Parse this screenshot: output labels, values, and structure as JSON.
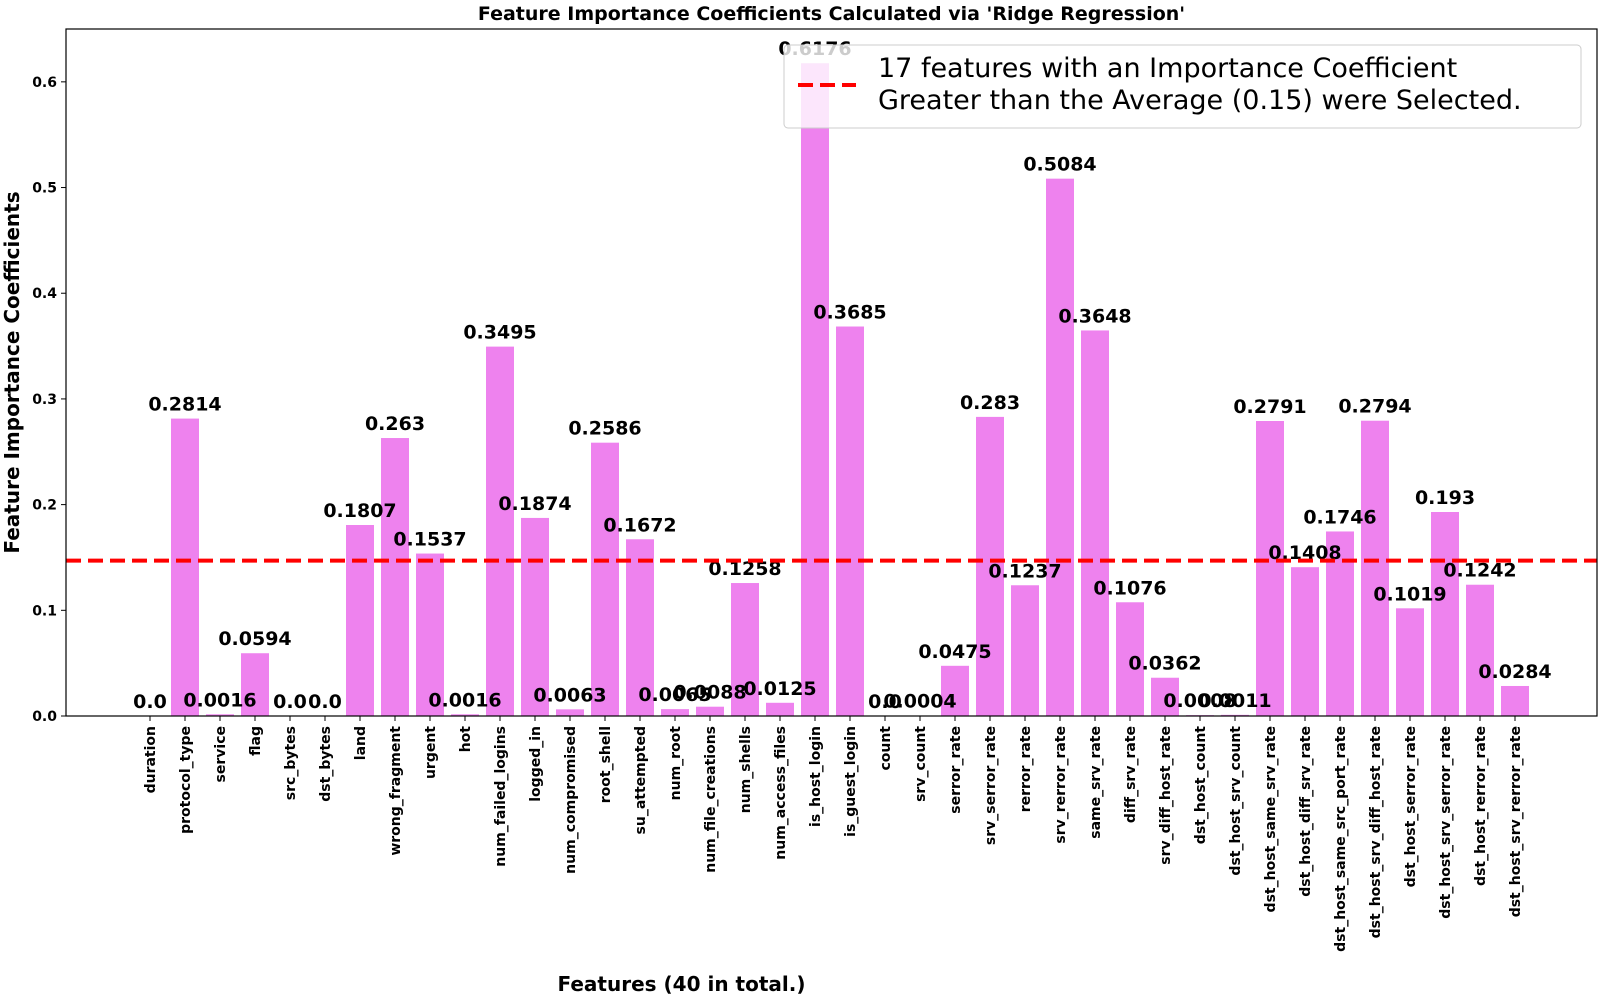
{
  "chart_data": {
    "type": "bar",
    "title": "Feature Importance Coefficients Calculated via 'Ridge Regression'",
    "xlabel": "Features (40 in total.)",
    "ylabel": "Feature Importance Coefficients",
    "ylim": [
      0,
      0.65
    ],
    "yticks": [
      0.0,
      0.1,
      0.2,
      0.3,
      0.4,
      0.5,
      0.6
    ],
    "ytick_labels": [
      "0.0",
      "0.1",
      "0.2",
      "0.3",
      "0.4",
      "0.5",
      "0.6"
    ],
    "grid": false,
    "legend_position": "top-right",
    "bar_color": "#ee82ee",
    "threshold": {
      "value": 0.147,
      "color": "#ff0000",
      "style": "dashed",
      "legend_line1": "17 features with an Importance Coefficient",
      "legend_line2": "Greater than the Average (0.15) were Selected."
    },
    "categories": [
      "duration",
      "protocol_type",
      "service",
      "flag",
      "src_bytes",
      "dst_bytes",
      "land",
      "wrong_fragment",
      "urgent",
      "hot",
      "num_failed_logins",
      "logged_in",
      "num_compromised",
      "root_shell",
      "su_attempted",
      "num_root",
      "num_file_creations",
      "num_shells",
      "num_access_files",
      "is_host_login",
      "is_guest_login",
      "count",
      "srv_count",
      "serror_rate",
      "srv_serror_rate",
      "rerror_rate",
      "srv_rerror_rate",
      "same_srv_rate",
      "diff_srv_rate",
      "srv_diff_host_rate",
      "dst_host_count",
      "dst_host_srv_count",
      "dst_host_same_srv_rate",
      "dst_host_diff_srv_rate",
      "dst_host_same_src_port_rate",
      "dst_host_srv_diff_host_rate",
      "dst_host_serror_rate",
      "dst_host_srv_serror_rate",
      "dst_host_rerror_rate",
      "dst_host_srv_rerror_rate"
    ],
    "values": [
      0.0,
      0.2814,
      0.0016,
      0.0594,
      0.0,
      0.0,
      0.1807,
      0.263,
      0.1537,
      0.0016,
      0.3495,
      0.1874,
      0.0063,
      0.2586,
      0.1672,
      0.0065,
      0.0088,
      0.1258,
      0.0125,
      0.6176,
      0.3685,
      0.0,
      0.0004,
      0.0475,
      0.283,
      0.1237,
      0.5084,
      0.3648,
      0.1076,
      0.0362,
      0.0008,
      0.0011,
      0.2791,
      0.1408,
      0.1746,
      0.2794,
      0.1019,
      0.193,
      0.1242,
      0.0284
    ],
    "value_labels": [
      "0.0",
      "0.2814",
      "0.0016",
      "0.0594",
      "0.0",
      "0.0",
      "0.1807",
      "0.263",
      "0.1537",
      "0.0016",
      "0.3495",
      "0.1874",
      "0.0063",
      "0.2586",
      "0.1672",
      "0.0065",
      "0.0088",
      "0.1258",
      "0.0125",
      "0.6176",
      "0.3685",
      "0.0",
      "0.0004",
      "0.0475",
      "0.283",
      "0.1237",
      "0.5084",
      "0.3648",
      "0.1076",
      "0.0362",
      "0.0008",
      "0.0011",
      "0.2791",
      "0.1408",
      "0.1746",
      "0.2794",
      "0.1019",
      "0.193",
      "0.1242",
      "0.0284"
    ]
  }
}
